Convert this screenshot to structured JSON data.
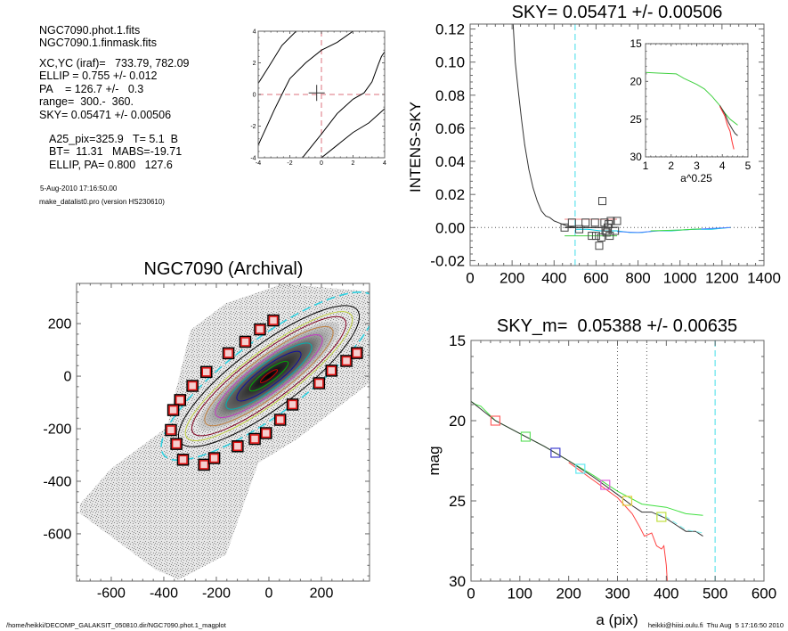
{
  "info": {
    "lines": [
      "NGC7090.phot.1.fits",
      "NGC7090.1.finmask.fits",
      "XC,YC (iraf)=   733.79, 782.09",
      "ELLIP = 0.755 +/- 0.012",
      "PA    = 126.7 +/-   0.3",
      "range=  300.-  360.",
      "SKY= 0.05471 +/- 0.00506"
    ],
    "extra": [
      "A25_pix=325.9   T= 5.1  B",
      "BT=  11.31   MABS=-19.71",
      "ELLIP, PA= 0.800   127.6"
    ],
    "date": "5-Aug-2010 17:16:50.00",
    "program": "make_datalist0.pro (version HS230610)"
  },
  "footer": {
    "path": "/home/heikki/DECOMP_GALAKSIT_050810.dir/NGC7090.phot.1_magplot",
    "user": "heikki@hiisi.oulu.fi  Thu Aug  5 17:16:50 2010"
  },
  "chart_data": [
    {
      "id": "center-plot",
      "type": "line",
      "title": "",
      "xlim": [
        -4,
        4
      ],
      "ylim": [
        -4,
        4
      ],
      "xticks": [
        -4,
        -2,
        0,
        2,
        4
      ],
      "yticks": [
        -4,
        -2,
        0,
        2,
        4
      ],
      "series": [
        {
          "color": "#000000",
          "points": [
            [
              -4,
              -3.2
            ],
            [
              -3.4,
              -1.9
            ],
            [
              -3,
              -1
            ],
            [
              -2.5,
              0
            ],
            [
              -2,
              1
            ],
            [
              -1,
              2
            ],
            [
              0,
              2.8
            ],
            [
              1,
              3.3
            ],
            [
              2,
              4
            ]
          ]
        },
        {
          "color": "#000000",
          "points": [
            [
              -4,
              0.7
            ],
            [
              -3.3,
              1.8
            ],
            [
              -2.5,
              3.1
            ],
            [
              -1.6,
              4
            ]
          ]
        },
        {
          "color": "#000000",
          "points": [
            [
              -1.2,
              -4
            ],
            [
              0,
              -2.5
            ],
            [
              1,
              -1.2
            ],
            [
              2,
              -0.3
            ],
            [
              2.7,
              0.1
            ],
            [
              3.2,
              0.8
            ],
            [
              3.6,
              1.9
            ],
            [
              3.8,
              2.4
            ],
            [
              4,
              2.7
            ]
          ]
        },
        {
          "color": "#000000",
          "points": [
            [
              0,
              -4
            ],
            [
              1,
              -3.2
            ],
            [
              2,
              -2.4
            ],
            [
              3,
              -1.8
            ],
            [
              4,
              -0.9
            ]
          ]
        }
      ],
      "crosshair": [
        -0.3,
        0.1
      ],
      "reference_lines": {
        "x": 0,
        "y": 0,
        "color": "#e8a0a8",
        "style": "dashed"
      }
    },
    {
      "id": "sky-plot",
      "type": "line",
      "title": "SKY= 0.05471 +/- 0.00506",
      "xlabel": "",
      "ylabel": "INTENS-SKY",
      "xlim": [
        0,
        1400
      ],
      "ylim": [
        -0.023,
        0.123
      ],
      "xticks": [
        0,
        200,
        400,
        600,
        800,
        1000,
        1200,
        1400
      ],
      "yticks": [
        -0.02,
        0.0,
        0.02,
        0.04,
        0.06,
        0.08,
        0.1,
        0.12
      ],
      "ytick_labels": [
        "-0.02",
        "0.00",
        "0.02",
        "0.04",
        "0.06",
        "0.08",
        "0.10",
        "0.12"
      ],
      "sky_radius": 500,
      "series": [
        {
          "color": "#333333",
          "points": [
            [
              205,
              0.123
            ],
            [
              215,
              0.1
            ],
            [
              230,
              0.082
            ],
            [
              245,
              0.065
            ],
            [
              260,
              0.05
            ],
            [
              280,
              0.035
            ],
            [
              300,
              0.024
            ],
            [
              320,
              0.016
            ],
            [
              340,
              0.01
            ],
            [
              360,
              0.007
            ],
            [
              380,
              0.006
            ],
            [
              400,
              0.004
            ],
            [
              420,
              0.003
            ],
            [
              440,
              0.002
            ],
            [
              460,
              0.001
            ],
            [
              500,
              0.0
            ]
          ]
        },
        {
          "color": "#00c8e0",
          "points": [
            [
              500,
              -0.001
            ],
            [
              560,
              -0.001
            ],
            [
              620,
              -0.002
            ],
            [
              700,
              -0.002
            ],
            [
              760,
              -0.003
            ],
            [
              820,
              -0.003
            ],
            [
              880,
              -0.002
            ],
            [
              960,
              -0.002
            ],
            [
              1060,
              -0.001
            ],
            [
              1150,
              -0.001
            ],
            [
              1240,
              0.0
            ]
          ]
        },
        {
          "color": "#5080ff",
          "points": [
            [
              700,
              -0.0025
            ],
            [
              800,
              -0.003
            ],
            [
              900,
              -0.002
            ],
            [
              1000,
              -0.0015
            ],
            [
              1240,
              0.0
            ]
          ]
        },
        {
          "color": "#40e040",
          "points": [
            [
              860,
              -0.002
            ],
            [
              1000,
              -0.0015
            ],
            [
              1100,
              -0.0008
            ]
          ]
        },
        {
          "color": "#f08080",
          "points": [
            [
              450,
              0.005
            ],
            [
              700,
              0.005
            ]
          ]
        },
        {
          "color": "#40d040",
          "points": [
            [
              450,
              -0.005
            ],
            [
              700,
              -0.005
            ]
          ]
        },
        {
          "color": "#000000",
          "points": [
            [
              450,
              0.0
            ],
            [
              700,
              0.0
            ]
          ]
        }
      ],
      "sky_boxes": [
        [
          450,
          0.0
        ],
        [
          485,
          0.003
        ],
        [
          520,
          -0.001
        ],
        [
          550,
          0.003
        ],
        [
          580,
          -0.005
        ],
        [
          595,
          0.003
        ],
        [
          600,
          -0.005
        ],
        [
          615,
          -0.011
        ],
        [
          625,
          -0.006
        ],
        [
          630,
          0.016
        ],
        [
          640,
          0.003
        ],
        [
          645,
          -0.002
        ],
        [
          650,
          -0.003
        ],
        [
          655,
          0.0
        ],
        [
          660,
          0.002
        ],
        [
          665,
          -0.005
        ],
        [
          670,
          0.004
        ],
        [
          700,
          0.004
        ],
        [
          690,
          -0.002
        ]
      ],
      "inset": {
        "xlabel": "a^0.25",
        "xlim": [
          1,
          5
        ],
        "ylim": [
          15,
          30
        ],
        "y_inverted": true,
        "xticks": [
          1,
          2,
          3,
          4,
          5
        ],
        "yticks": [
          15,
          20,
          25,
          30
        ],
        "series": [
          {
            "color": "#40d040",
            "points": [
              [
                1,
                18.8
              ],
              [
                1.5,
                18.9
              ],
              [
                2.2,
                19
              ],
              [
                2.5,
                19.6
              ],
              [
                3,
                20.4
              ],
              [
                3.3,
                21
              ],
              [
                3.6,
                22
              ],
              [
                3.9,
                23.2
              ],
              [
                4.1,
                24.2
              ],
              [
                4.3,
                25
              ],
              [
                4.6,
                25.8
              ]
            ]
          },
          {
            "color": "#333333",
            "points": [
              [
                3.9,
                23.2
              ],
              [
                4.1,
                24.3
              ],
              [
                4.25,
                25.5
              ],
              [
                4.4,
                26.4
              ],
              [
                4.5,
                26.9
              ],
              [
                4.6,
                27.2
              ]
            ]
          },
          {
            "color": "#ff3030",
            "points": [
              [
                3.9,
                23.3
              ],
              [
                4.1,
                24.6
              ],
              [
                4.2,
                25.8
              ],
              [
                4.3,
                26.6
              ],
              [
                4.38,
                28
              ],
              [
                4.45,
                29
              ]
            ]
          }
        ]
      }
    },
    {
      "id": "image-plot",
      "type": "scatter",
      "title": "NGC7090 (Archival)",
      "xlim": [
        -732,
        383
      ],
      "ylim": [
        -780,
        353
      ],
      "xticks": [
        -600,
        -400,
        -200,
        0,
        200
      ],
      "yticks": [
        -600,
        -400,
        -200,
        0,
        200
      ],
      "ellip": 0.755,
      "pa": 126.7,
      "isophotes": [
        {
          "a": 40,
          "color": "#d00000"
        },
        {
          "a": 90,
          "color": "#00b000"
        },
        {
          "a": 150,
          "color": "#1010a0"
        },
        {
          "a": 200,
          "color": "#00b0b0"
        },
        {
          "a": 250,
          "color": "#c040c0"
        },
        {
          "a": 300,
          "color": "#c08040"
        },
        {
          "a": 360,
          "color": "#800020"
        },
        {
          "a": 390,
          "color": "#c0d040"
        },
        {
          "a": 420,
          "color": "#000000"
        },
        {
          "a": 500,
          "color": "#30d0e0",
          "dashed": true
        }
      ],
      "sky_boxes": [
        [
          17,
          212
        ],
        [
          -34,
          178
        ],
        [
          -90,
          131
        ],
        [
          -154,
          87
        ],
        [
          -238,
          16
        ],
        [
          -291,
          -37
        ],
        [
          -338,
          -91
        ],
        [
          -364,
          -129
        ],
        [
          -373,
          -205
        ],
        [
          -352,
          -258
        ],
        [
          -327,
          -318
        ],
        [
          -247,
          -337
        ],
        [
          -208,
          -312
        ],
        [
          -119,
          -267
        ],
        [
          -54,
          -239
        ],
        [
          -11,
          -217
        ],
        [
          43,
          -166
        ],
        [
          90,
          -108
        ],
        [
          191,
          -27
        ],
        [
          238,
          21
        ],
        [
          295,
          58
        ],
        [
          335,
          88
        ]
      ]
    },
    {
      "id": "mag-plot",
      "type": "line",
      "title": "SKY_m=  0.05388 +/- 0.00635",
      "xlabel": "a (pix)",
      "ylabel": "mag",
      "xlim": [
        0,
        600
      ],
      "ylim": [
        15,
        30
      ],
      "y_inverted": true,
      "xticks": [
        0,
        100,
        200,
        300,
        400,
        500,
        600
      ],
      "yticks": [
        15,
        20,
        25,
        30
      ],
      "range_lines": [
        300,
        360
      ],
      "sky_radius": 500,
      "series": [
        {
          "color": "#40e040",
          "points": [
            [
              0,
              18.8
            ],
            [
              10,
              19
            ],
            [
              20,
              19.1
            ],
            [
              50,
              20
            ],
            [
              100,
              20.8
            ],
            [
              150,
              21.6
            ],
            [
              200,
              22.5
            ],
            [
              250,
              23.4
            ],
            [
              300,
              24.4
            ],
            [
              350,
              25.2
            ],
            [
              400,
              25.4
            ],
            [
              440,
              25.8
            ],
            [
              475,
              25.9
            ]
          ]
        },
        {
          "color": "#333333",
          "points": [
            [
              0,
              18.8
            ],
            [
              50,
              20
            ],
            [
              100,
              20.8
            ],
            [
              150,
              21.6
            ],
            [
              200,
              22.5
            ],
            [
              250,
              23.5
            ],
            [
              300,
              24.6
            ],
            [
              330,
              25.3
            ],
            [
              350,
              25.7
            ],
            [
              370,
              25.7
            ],
            [
              400,
              26.1
            ],
            [
              420,
              26.5
            ],
            [
              440,
              26.9
            ],
            [
              460,
              26.9
            ],
            [
              475,
              27.2
            ]
          ]
        },
        {
          "color": "#80f0f0",
          "dashed": true,
          "points": [
            [
              380,
              25.8
            ],
            [
              400,
              26.0
            ],
            [
              420,
              26.4
            ],
            [
              440,
              26.8
            ],
            [
              475,
              27
            ]
          ]
        },
        {
          "color": "#ff4040",
          "points": [
            [
              200,
              22.6
            ],
            [
              250,
              23.7
            ],
            [
              300,
              24.8
            ],
            [
              330,
              25.8
            ],
            [
              345,
              26.6
            ],
            [
              355,
              27.2
            ],
            [
              370,
              27
            ],
            [
              380,
              27.8
            ],
            [
              390,
              28
            ],
            [
              395,
              27.8
            ],
            [
              400,
              29
            ],
            [
              402,
              30
            ]
          ]
        }
      ],
      "markers": [
        {
          "x": 50,
          "y": 20,
          "color": "#ff6060"
        },
        {
          "x": 112,
          "y": 21,
          "color": "#60e060"
        },
        {
          "x": 173,
          "y": 22,
          "color": "#4040d0"
        },
        {
          "x": 224,
          "y": 23,
          "color": "#60e8f0"
        },
        {
          "x": 275,
          "y": 24,
          "color": "#e060e0"
        },
        {
          "x": 320,
          "y": 25,
          "color": "#e0d040"
        },
        {
          "x": 390,
          "y": 26,
          "color": "#c0e040"
        }
      ]
    }
  ]
}
